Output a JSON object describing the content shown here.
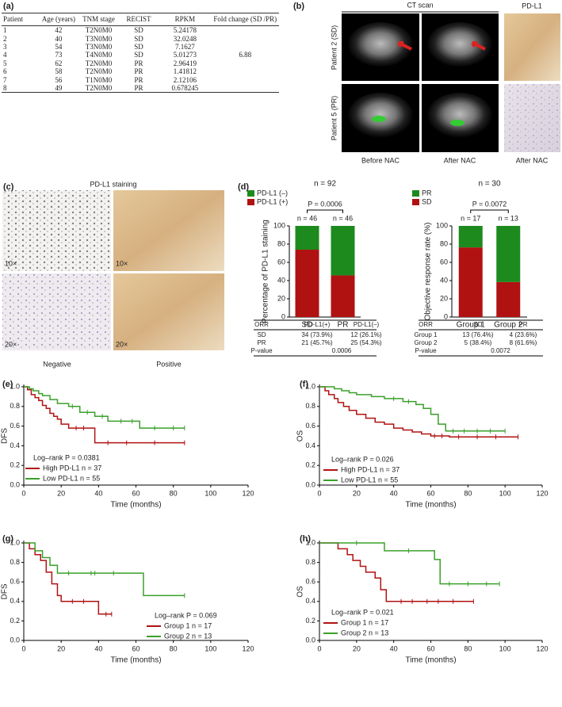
{
  "panel_a": {
    "label": "(a)",
    "header": [
      "Patient",
      "Age (years)",
      "TNM stage",
      "RECIST",
      "RPKM",
      "Fold change (SD /PR)"
    ],
    "rows": [
      [
        "1",
        "42",
        "T2N0M0",
        "SD",
        "5.24178"
      ],
      [
        "2",
        "40",
        "T3N0M0",
        "SD",
        "32.0248"
      ],
      [
        "3",
        "54",
        "T3N0M0",
        "SD",
        "7.1627"
      ],
      [
        "4",
        "73",
        "T4N0M0",
        "SD",
        "5.01273",
        "6.88"
      ],
      [
        "5",
        "62",
        "T2N0M0",
        "PR",
        "2.96419"
      ],
      [
        "6",
        "58",
        "T2N0M0",
        "PR",
        "1.41812"
      ],
      [
        "7",
        "56",
        "T1N0M0",
        "PR",
        "2.12106"
      ],
      [
        "8",
        "49",
        "T2N0M0",
        "PR",
        "0.678245"
      ]
    ]
  },
  "panel_b": {
    "label": "(b)",
    "ct_title": "CT scan",
    "stain_title": "PD-L1",
    "row_labels": [
      "Patient 2 (SD)",
      "Patient 5 (PR)"
    ],
    "column_labels": [
      "Before NAC",
      "After NAC",
      "After NAC"
    ]
  },
  "panel_c": {
    "label": "(c)",
    "title": "PD-L1 staining",
    "magnifications": [
      "10×",
      "10×",
      "20×",
      "20×"
    ],
    "column_labels": [
      "Negative",
      "Positive"
    ]
  },
  "chart_data": [
    {
      "type": "stacked_bar",
      "panel_label": "(d)",
      "title": "n = 92",
      "annotation": "P = 0.0006",
      "categories": [
        "SD",
        "PR"
      ],
      "category_labels": [
        "n = 46",
        "n = 46"
      ],
      "ylabel": "Percentage of PD-L1 staining",
      "ylim": [
        0,
        100
      ],
      "yticks": [
        0,
        20,
        40,
        60,
        80,
        100
      ],
      "series": [
        {
          "name": "PD-L1 (–)",
          "color": "#1d8a1d",
          "values": [
            26.1,
            54.3
          ]
        },
        {
          "name": "PD-L1 (+)",
          "color": "#b01212",
          "values": [
            73.9,
            45.7
          ]
        }
      ],
      "table": {
        "header": [
          "ORR",
          "PD-L1(+)",
          "PD-L1(–)"
        ],
        "rows": [
          [
            "SD",
            "34 (73.9%)",
            "12 (26.1%)"
          ],
          [
            "PR",
            "21 (45.7%)",
            "25 (54.3%)"
          ],
          [
            "P-value",
            "0.0006"
          ]
        ]
      }
    },
    {
      "type": "stacked_bar",
      "title": "n = 30",
      "annotation": "P = 0.0072",
      "categories": [
        "Group 1",
        "Group 2"
      ],
      "category_labels": [
        "n = 17",
        "n = 13"
      ],
      "ylabel": "Objective response rate (%)",
      "ylim": [
        0,
        100
      ],
      "yticks": [
        0,
        20,
        40,
        60,
        80,
        100
      ],
      "series": [
        {
          "name": "PR",
          "color": "#1d8a1d",
          "values": [
            23.6,
            61.6
          ]
        },
        {
          "name": "SD",
          "color": "#b01212",
          "values": [
            76.4,
            38.4
          ]
        }
      ],
      "table": {
        "header": [
          "ORR",
          "SD",
          "PR"
        ],
        "rows": [
          [
            "Group 1",
            "13 (76.4%)",
            "4 (23.6%)"
          ],
          [
            "Group 2",
            "5 (38.4%)",
            "8 (61.6%)"
          ],
          [
            "P-value",
            "0.0072"
          ]
        ]
      }
    },
    {
      "type": "km",
      "panel_label": "(e)",
      "xlabel": "Time (months)",
      "ylabel": "DFS",
      "annotation": "Log–rank P = 0.0381",
      "xlim": [
        0,
        120
      ],
      "xticks": [
        0,
        20,
        40,
        60,
        80,
        100,
        120
      ],
      "ylim": [
        0,
        1
      ],
      "yticks": [
        {
          "value": 0,
          "label": "0.0"
        },
        {
          "value": 0.2,
          "label": "0.2"
        },
        {
          "value": 0.4,
          "label": "0.4"
        },
        {
          "value": 0.6,
          "label": "0.6"
        },
        {
          "value": 0.8,
          "label": "0.8"
        },
        {
          "value": 1,
          "label": "1.0"
        }
      ],
      "series": [
        {
          "name": "High PD-L1 n = 37",
          "color": "#b01212",
          "x": [
            0,
            2,
            4,
            6,
            8,
            10,
            12,
            14,
            16,
            18,
            20,
            24,
            38,
            86
          ],
          "values": [
            1,
            0.97,
            0.92,
            0.89,
            0.86,
            0.81,
            0.78,
            0.73,
            0.7,
            0.67,
            0.62,
            0.58,
            0.43,
            0.43
          ],
          "censored": [
            28,
            32,
            45,
            55,
            70,
            86
          ]
        },
        {
          "name": "Low PD-L1 n = 55",
          "color": "#3aa02a",
          "x": [
            0,
            3,
            5,
            8,
            10,
            14,
            18,
            24,
            30,
            38,
            45,
            62,
            86
          ],
          "values": [
            1,
            0.98,
            0.96,
            0.93,
            0.91,
            0.87,
            0.83,
            0.8,
            0.74,
            0.7,
            0.65,
            0.58,
            0.58
          ],
          "censored": [
            26,
            34,
            42,
            52,
            58,
            70,
            80,
            86
          ]
        }
      ]
    },
    {
      "type": "km",
      "panel_label": "(f)",
      "xlabel": "Time (months)",
      "ylabel": "OS",
      "annotation": "Log–rank P = 0.026",
      "xlim": [
        0,
        120
      ],
      "xticks": [
        0,
        20,
        40,
        60,
        80,
        100,
        120
      ],
      "ylim": [
        0,
        1
      ],
      "yticks": [
        {
          "value": 0,
          "label": "0.0"
        },
        {
          "value": 0.2,
          "label": "0.2"
        },
        {
          "value": 0.4,
          "label": "0.4"
        },
        {
          "value": 0.6,
          "label": "0.6"
        },
        {
          "value": 0.8,
          "label": "0.8"
        },
        {
          "value": 1,
          "label": "1.0"
        }
      ],
      "series": [
        {
          "name": "High PD-L1 n = 37",
          "color": "#b01212",
          "x": [
            0,
            3,
            5,
            8,
            10,
            13,
            16,
            20,
            25,
            30,
            35,
            40,
            45,
            50,
            55,
            60,
            70,
            107
          ],
          "values": [
            1,
            0.96,
            0.92,
            0.88,
            0.84,
            0.8,
            0.76,
            0.72,
            0.68,
            0.64,
            0.62,
            0.58,
            0.56,
            0.54,
            0.52,
            0.5,
            0.49,
            0.49
          ],
          "censored": [
            62,
            66,
            75,
            85,
            95,
            107
          ]
        },
        {
          "name": "Low PD-L1 n = 55",
          "color": "#3aa02a",
          "x": [
            0,
            8,
            12,
            16,
            20,
            28,
            35,
            45,
            52,
            56,
            60,
            64,
            68,
            100
          ],
          "values": [
            1,
            0.98,
            0.96,
            0.94,
            0.92,
            0.9,
            0.88,
            0.85,
            0.82,
            0.78,
            0.72,
            0.62,
            0.55,
            0.55
          ],
          "censored": [
            40,
            48,
            72,
            78,
            85,
            92,
            100
          ]
        }
      ]
    },
    {
      "type": "km",
      "panel_label": "(g)",
      "xlabel": "Time (months)",
      "ylabel": "DFS",
      "annotation": "Log–rank P = 0.069",
      "xlim": [
        0,
        120
      ],
      "xticks": [
        0,
        20,
        40,
        60,
        80,
        100,
        120
      ],
      "ylim": [
        0,
        1
      ],
      "yticks": [
        {
          "value": 0,
          "label": "0.0"
        },
        {
          "value": 0.2,
          "label": "0.2"
        },
        {
          "value": 0.4,
          "label": "0.4"
        },
        {
          "value": 0.6,
          "label": "0.6"
        },
        {
          "value": 0.8,
          "label": "0.8"
        },
        {
          "value": 1,
          "label": "1.0"
        }
      ],
      "series": [
        {
          "name": "Group 1 n = 17",
          "color": "#b01212",
          "x": [
            0,
            3,
            6,
            9,
            12,
            15,
            18,
            20,
            40,
            47
          ],
          "values": [
            1,
            0.94,
            0.88,
            0.82,
            0.7,
            0.58,
            0.46,
            0.4,
            0.27,
            0.27
          ],
          "censored": [
            26,
            32,
            44,
            47
          ]
        },
        {
          "name": "Group 2 n = 13",
          "color": "#3aa02a",
          "x": [
            0,
            6,
            10,
            14,
            18,
            64,
            86
          ],
          "values": [
            1,
            0.92,
            0.85,
            0.77,
            0.69,
            0.46,
            0.46
          ],
          "censored": [
            24,
            36,
            38,
            48,
            86
          ]
        }
      ]
    },
    {
      "type": "km",
      "panel_label": "(h)",
      "xlabel": "Time (months)",
      "ylabel": "OS",
      "annotation": "Log–rank P = 0.021",
      "xlim": [
        0,
        120
      ],
      "xticks": [
        0,
        20,
        40,
        60,
        80,
        100,
        120
      ],
      "ylim": [
        0,
        1
      ],
      "yticks": [
        {
          "value": 0,
          "label": "0.0"
        },
        {
          "value": 0.2,
          "label": "0.2"
        },
        {
          "value": 0.4,
          "label": "0.4"
        },
        {
          "value": 0.6,
          "label": "0.6"
        },
        {
          "value": 0.8,
          "label": "0.8"
        },
        {
          "value": 1,
          "label": "1.0"
        }
      ],
      "series": [
        {
          "name": "Group 1 n = 17",
          "color": "#b01212",
          "x": [
            0,
            10,
            15,
            18,
            22,
            25,
            30,
            33,
            36,
            83
          ],
          "values": [
            1,
            0.94,
            0.88,
            0.82,
            0.76,
            0.7,
            0.64,
            0.52,
            0.4,
            0.4
          ],
          "censored": [
            44,
            50,
            58,
            64,
            72,
            83
          ]
        },
        {
          "name": "Group 2 n = 13",
          "color": "#3aa02a",
          "x": [
            0,
            35,
            62,
            65,
            97
          ],
          "values": [
            1,
            0.92,
            0.83,
            0.58,
            0.58
          ],
          "censored": [
            20,
            48,
            70,
            80,
            90,
            97
          ]
        }
      ]
    }
  ]
}
